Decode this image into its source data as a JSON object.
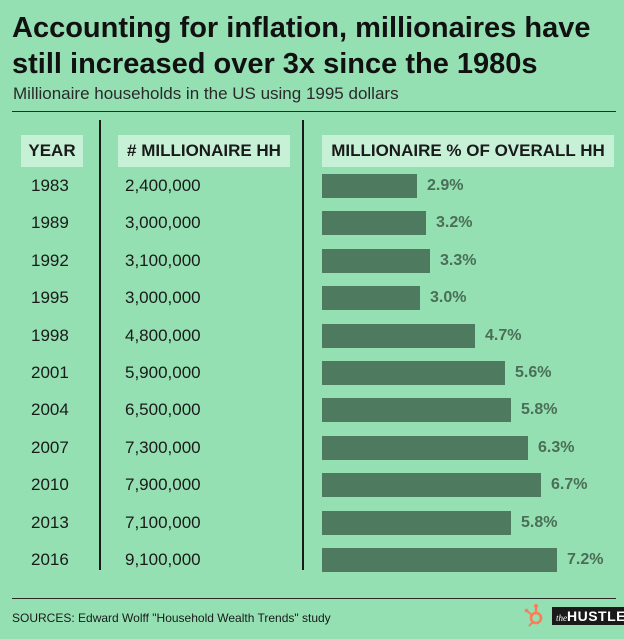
{
  "header": {
    "title": "Accounting for inflation, millionaires have still increased over 3x since the 1980s",
    "subtitle": "Millionaire households in the US using 1995 dollars"
  },
  "columns": {
    "year": "YEAR",
    "count": "# MILLIONAIRE HH",
    "pct": "MILLIONAIRE % OF OVERALL HH"
  },
  "footer": {
    "sources": "SOURCES: Edward Wolff \"Household Wealth Trends\" study",
    "logo_small": "the",
    "logo_big": "HUSTLE"
  },
  "colors": {
    "background": "#94e0b2",
    "header_fill": "#c7f1d6",
    "bar": "#4e7a60",
    "pct_label": "#4a6e57",
    "logo_orange": "#ff7a59"
  },
  "chart_data": {
    "type": "table",
    "rows": [
      {
        "year": "1983",
        "count": "2,400,000",
        "pct_label": "2.9%",
        "pct": 2.9
      },
      {
        "year": "1989",
        "count": "3,000,000",
        "pct_label": "3.2%",
        "pct": 3.2
      },
      {
        "year": "1992",
        "count": "3,100,000",
        "pct_label": "3.3%",
        "pct": 3.3
      },
      {
        "year": "1995",
        "count": "3,000,000",
        "pct_label": "3.0%",
        "pct": 3.0
      },
      {
        "year": "1998",
        "count": "4,800,000",
        "pct_label": "4.7%",
        "pct": 4.7
      },
      {
        "year": "2001",
        "count": "5,900,000",
        "pct_label": "5.6%",
        "pct": 5.6
      },
      {
        "year": "2004",
        "count": "6,500,000",
        "pct_label": "5.8%",
        "pct": 5.8
      },
      {
        "year": "2007",
        "count": "7,300,000",
        "pct_label": "6.3%",
        "pct": 6.3
      },
      {
        "year": "2010",
        "count": "7,900,000",
        "pct_label": "6.7%",
        "pct": 6.7
      },
      {
        "year": "2013",
        "count": "7,100,000",
        "pct_label": "5.8%",
        "pct": 5.8
      },
      {
        "year": "2016",
        "count": "9,100,000",
        "pct_label": "7.2%",
        "pct": 7.2
      }
    ],
    "bar_scale_max": 7.2
  }
}
